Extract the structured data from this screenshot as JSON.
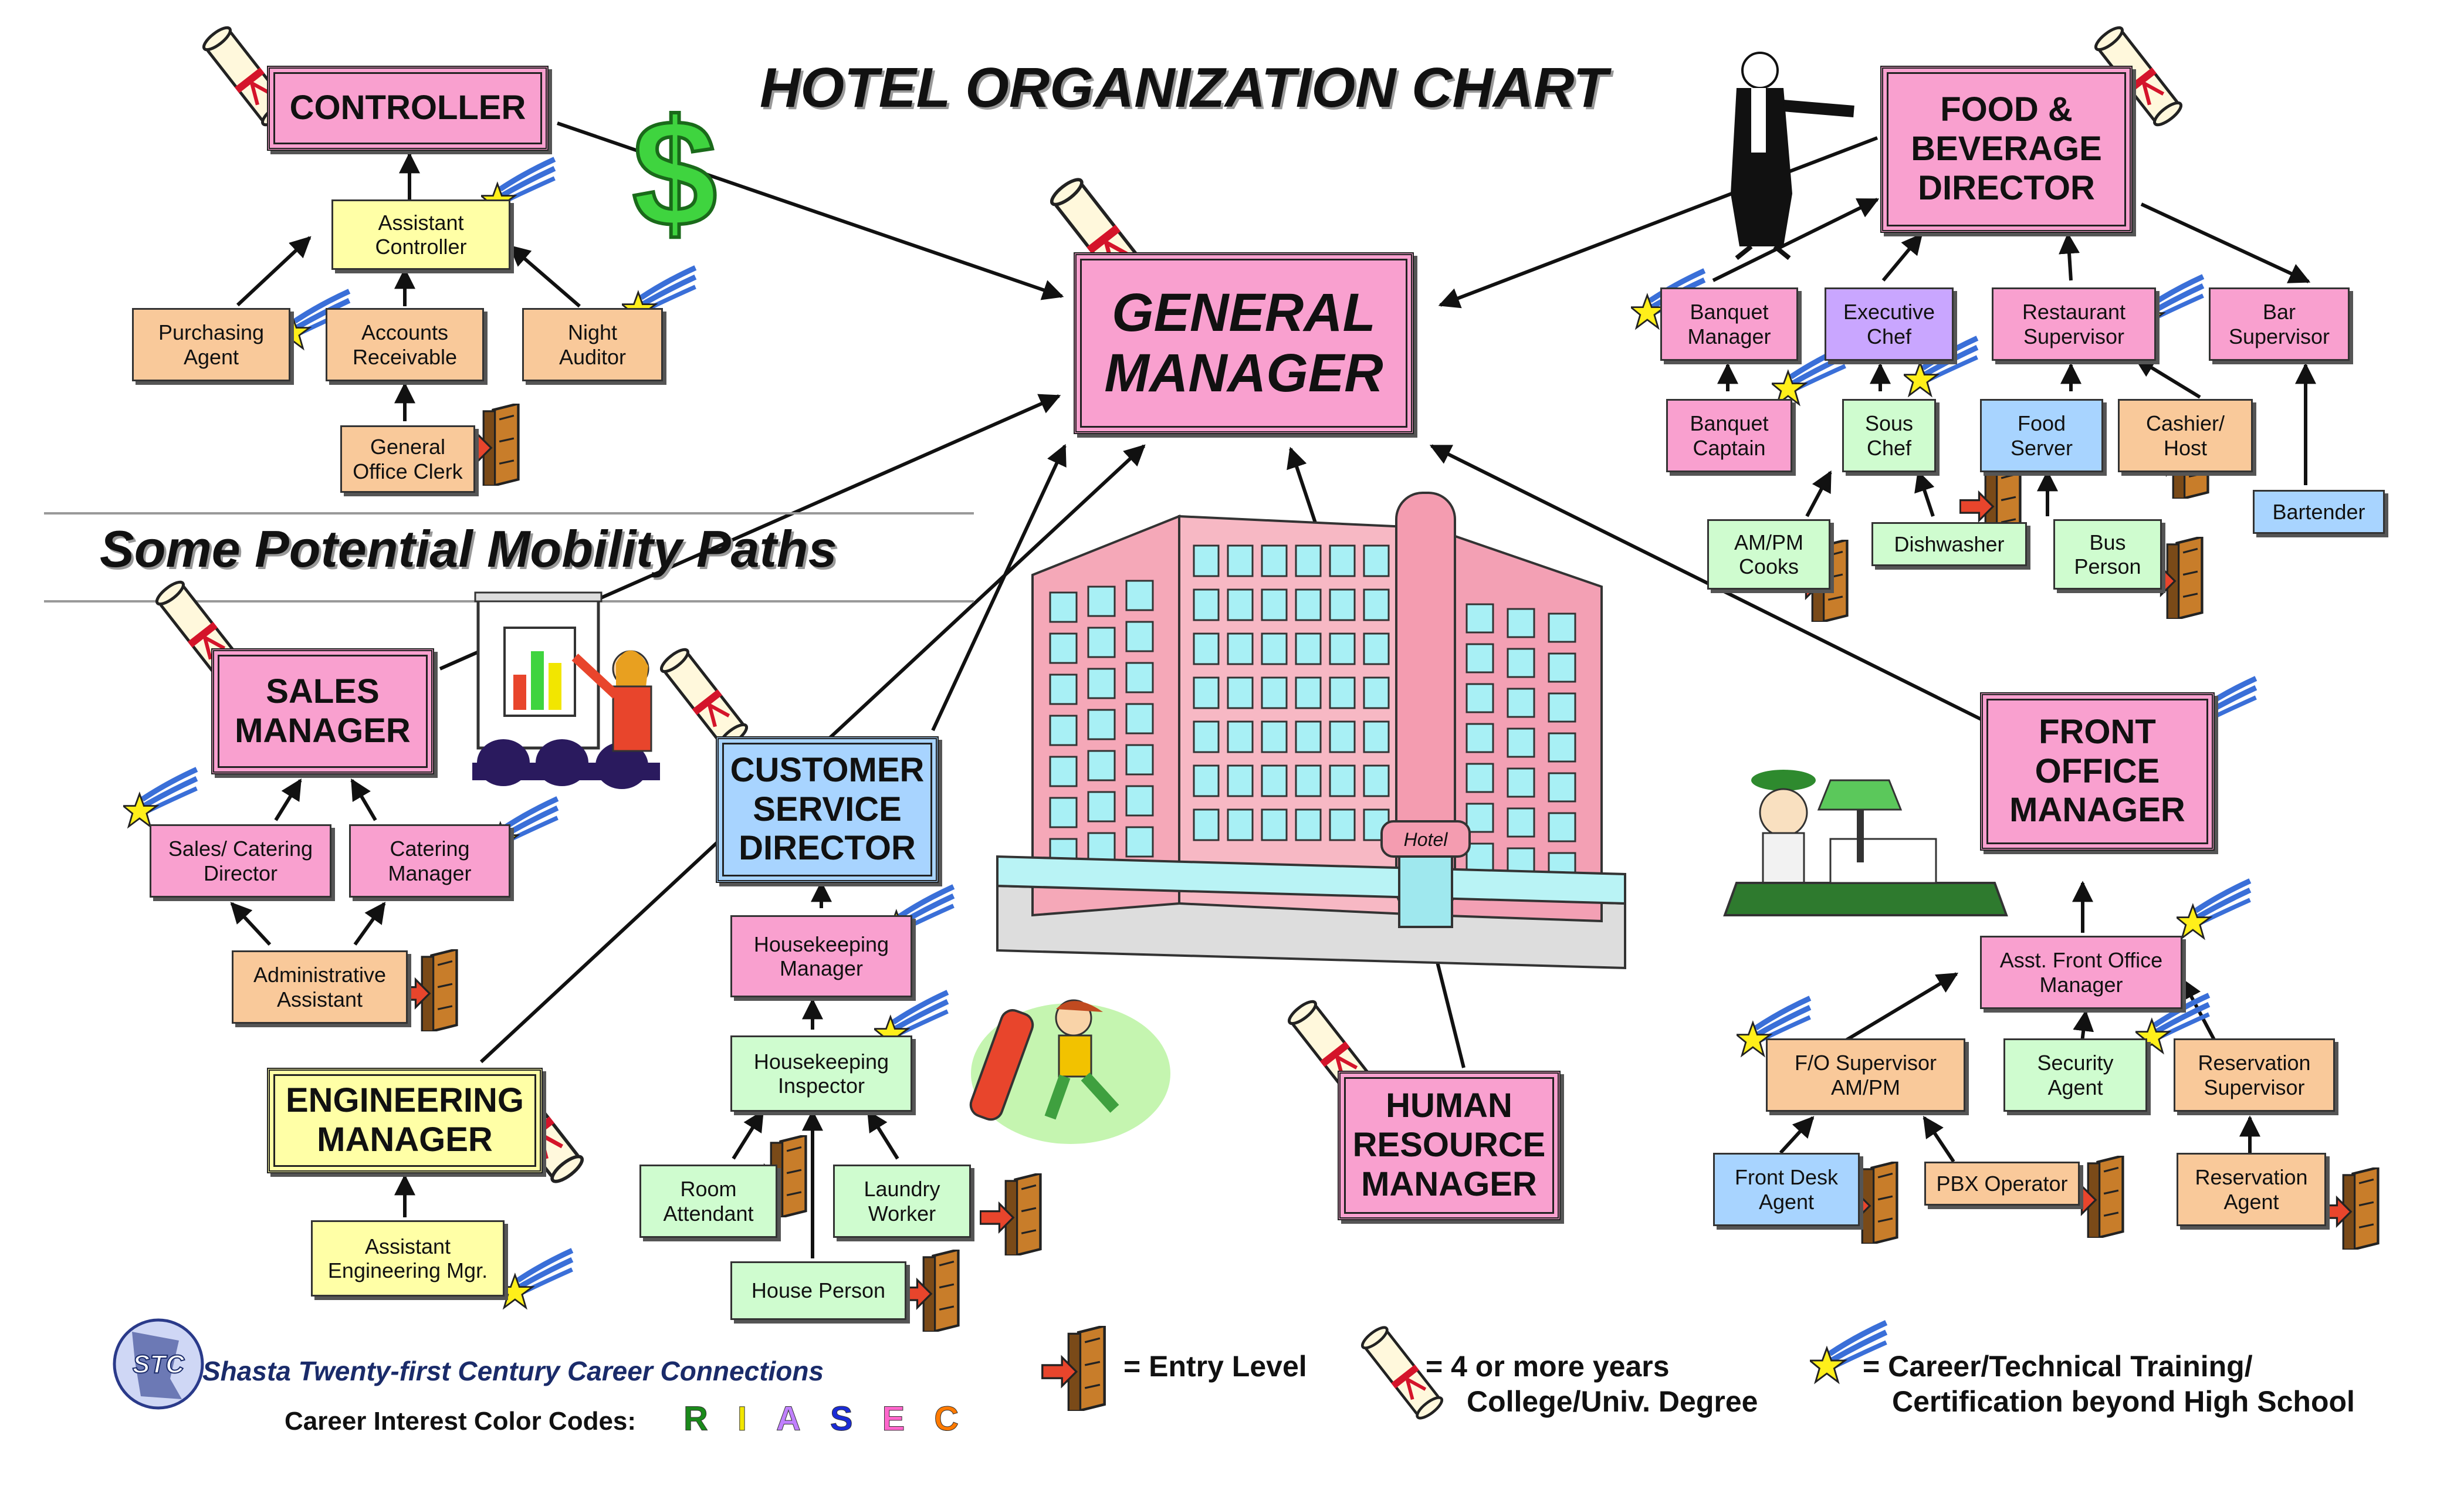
{
  "title": "HOTEL ORGANIZATION CHART",
  "subtitle": "Some Potential Mobility Paths",
  "boxes": {
    "general_manager": "GENERAL\nMANAGER",
    "controller": "CONTROLLER",
    "asst_controller": "Assistant\nController",
    "purchasing_agent": "Purchasing\nAgent",
    "accounts_receivable": "Accounts\nReceivable",
    "night_auditor": "Night\nAuditor",
    "general_office_clerk": "General\nOffice Clerk",
    "fb_director": "FOOD &\nBEVERAGE\nDIRECTOR",
    "banquet_manager": "Banquet\nManager",
    "executive_chef": "Executive\nChef",
    "restaurant_supervisor": "Restaurant\nSupervisor",
    "bar_supervisor": "Bar\nSupervisor",
    "banquet_captain": "Banquet\nCaptain",
    "sous_chef": "Sous\nChef",
    "food_server": "Food\nServer",
    "cashier_host": "Cashier/\nHost",
    "bartender": "Bartender",
    "ampm_cooks": "AM/PM\nCooks",
    "dishwasher": "Dishwasher",
    "bus_person": "Bus\nPerson",
    "sales_manager": "SALES\nMANAGER",
    "sales_catering_director": "Sales/ Catering\nDirector",
    "catering_manager": "Catering\nManager",
    "administrative_assistant": "Administrative\nAssistant",
    "customer_service_director": "CUSTOMER\nSERVICE\nDIRECTOR",
    "housekeeping_manager": "Housekeeping\nManager",
    "housekeeping_inspector": "Housekeeping\nInspector",
    "room_attendant": "Room\nAttendant",
    "laundry_worker": "Laundry\nWorker",
    "house_person": "House Person",
    "engineering_manager": "ENGINEERING\nMANAGER",
    "asst_engineering_mgr": "Assistant\nEngineering Mgr.",
    "hr_manager": "HUMAN\nRESOURCE\nMANAGER",
    "front_office_manager": "FRONT\nOFFICE\nMANAGER",
    "asst_front_office_manager": "Asst. Front Office\nManager",
    "fo_supervisor": "F/O Supervisor\nAM/PM",
    "security_agent": "Security\nAgent",
    "reservation_supervisor": "Reservation\nSupervisor",
    "front_desk_agent": "Front Desk\nAgent",
    "pbx_operator": "PBX Operator",
    "reservation_agent": "Reservation\nAgent"
  },
  "building_sign": "Hotel",
  "footer": {
    "org_logo": "STC",
    "org_name": "Shasta Twenty-first Century Career Connections",
    "color_codes_label": "Career Interest Color Codes:",
    "color_codes": [
      "R",
      "I",
      "A",
      "S",
      "E",
      "C"
    ],
    "color_code_colors": [
      "#1a8a1a",
      "#f2e600",
      "#c080ff",
      "#1a2bd6",
      "#ff66cc",
      "#ff7a00"
    ],
    "legend_entry": "= Entry Level",
    "legend_degree_1": "=  4 or more years",
    "legend_degree_2": "College/Univ.  Degree",
    "legend_training_1": "= Career/Technical Training/",
    "legend_training_2": "Certification beyond High School"
  },
  "colors": {
    "pink": "#f9a0cf",
    "peach": "#f9c99a",
    "yellow": "#ffffa6",
    "green": "#cffccf",
    "blue": "#a8d4ff",
    "purple": "#c9a6ff"
  }
}
